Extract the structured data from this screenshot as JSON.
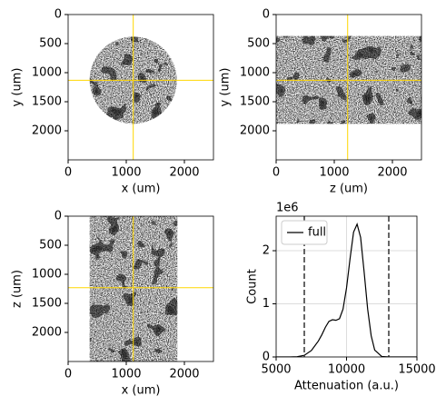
{
  "chart_data": [
    {
      "type": "image",
      "xlabel": "x (um)",
      "ylabel": "y (um)",
      "shape": "circle",
      "extent": [
        370,
        1870,
        380,
        1880
      ],
      "crosshair": {
        "x": 1120,
        "y": 1130,
        "color": "#ffd700"
      },
      "xlim": [
        0,
        2500
      ],
      "ylim": [
        2500,
        0
      ],
      "xticks": [
        0,
        1000,
        2000
      ],
      "yticks": [
        0,
        500,
        1000,
        1500,
        2000
      ]
    },
    {
      "type": "image",
      "xlabel": "z (um)",
      "ylabel": "y (um)",
      "shape": "rect",
      "extent": [
        0,
        2500,
        370,
        1880
      ],
      "crosshair": {
        "x": 1230,
        "y": 1130,
        "color": "#ffd700"
      },
      "xlim": [
        0,
        2500
      ],
      "ylim": [
        2500,
        0
      ],
      "xticks": [
        0,
        1000,
        2000
      ],
      "yticks": [
        0,
        500,
        1000,
        1500,
        2000
      ]
    },
    {
      "type": "image",
      "xlabel": "x (um)",
      "ylabel": "z (um)",
      "shape": "rect",
      "extent": [
        370,
        1880,
        0,
        2500
      ],
      "crosshair": {
        "x": 1120,
        "y": 1230,
        "color": "#ffd700"
      },
      "xlim": [
        0,
        2500
      ],
      "ylim": [
        2500,
        0
      ],
      "xticks": [
        0,
        1000,
        2000
      ],
      "yticks": [
        0,
        500,
        1000,
        1500,
        2000
      ]
    },
    {
      "type": "line",
      "xlabel": "Attenuation (a.u.)",
      "ylabel": "Count",
      "offset_text": "1e6",
      "grid": true,
      "legend": "upper left",
      "x": [
        5000,
        6000,
        6500,
        7000,
        7500,
        8000,
        8250,
        8500,
        8750,
        9000,
        9250,
        9500,
        9750,
        10000,
        10250,
        10500,
        10750,
        11000,
        11250,
        11500,
        11750,
        12000,
        12500,
        13000,
        15000
      ],
      "series": [
        {
          "name": "full",
          "color": "#000000",
          "values": [
            0,
            0,
            5000,
            30000,
            120000,
            300000,
            420000,
            560000,
            670000,
            700000,
            690000,
            720000,
            900000,
            1300000,
            1850000,
            2350000,
            2500000,
            2250000,
            1600000,
            900000,
            400000,
            130000,
            10000,
            0,
            0
          ]
        }
      ],
      "vlines": {
        "values": [
          7000,
          13000
        ],
        "color": "#333333"
      },
      "xlim": [
        5000,
        15000
      ],
      "ylim": [
        0,
        2650000
      ],
      "xticks": [
        5000,
        10000,
        15000
      ],
      "yticks": [
        {
          "value": 0,
          "label": "0"
        },
        {
          "value": 1000000,
          "label": "1"
        },
        {
          "value": 2000000,
          "label": "2"
        }
      ]
    }
  ]
}
